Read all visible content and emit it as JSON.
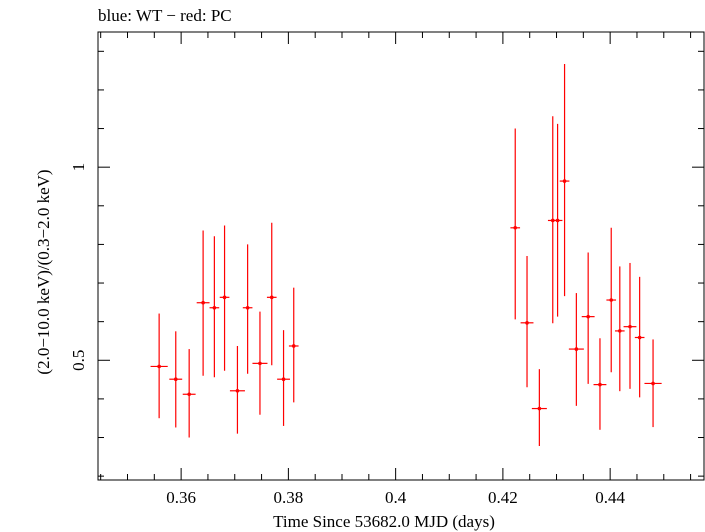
{
  "chart_data": {
    "type": "scatter",
    "title": "blue: WT − red: PC",
    "xlabel": "Time Since 53682.0 MJD (days)",
    "ylabel": "(2.0−10.0 keV)/(0.3−2.0 keV)",
    "xlim": [
      0.3445,
      0.4575
    ],
    "ylim": [
      0.19,
      1.35
    ],
    "x_ticks": [
      {
        "value": 0.36,
        "label": "0.36"
      },
      {
        "value": 0.38,
        "label": "0.38"
      },
      {
        "value": 0.4,
        "label": "0.4"
      },
      {
        "value": 0.42,
        "label": "0.42"
      },
      {
        "value": 0.44,
        "label": "0.44"
      }
    ],
    "y_ticks": [
      {
        "value": 0.5,
        "label": "0.5"
      },
      {
        "value": 1.0,
        "label": "1"
      }
    ],
    "grid": false,
    "series": [
      {
        "name": "PC",
        "color": "#ff0000",
        "points": [
          {
            "x": 0.3559,
            "xerr": 0.0016,
            "y": 0.484,
            "yerr_low": 0.134,
            "yerr_high": 0.137
          },
          {
            "x": 0.359,
            "xerr": 0.0012,
            "y": 0.451,
            "yerr_low": 0.125,
            "yerr_high": 0.124
          },
          {
            "x": 0.3615,
            "xerr": 0.0012,
            "y": 0.412,
            "yerr_low": 0.112,
            "yerr_high": 0.117
          },
          {
            "x": 0.3641,
            "xerr": 0.0012,
            "y": 0.649,
            "yerr_low": 0.189,
            "yerr_high": 0.187
          },
          {
            "x": 0.3662,
            "xerr": 0.0009,
            "y": 0.636,
            "yerr_low": 0.18,
            "yerr_high": 0.185
          },
          {
            "x": 0.3681,
            "xerr": 0.0009,
            "y": 0.663,
            "yerr_low": 0.19,
            "yerr_high": 0.186
          },
          {
            "x": 0.3705,
            "xerr": 0.0014,
            "y": 0.421,
            "yerr_low": 0.111,
            "yerr_high": 0.116
          },
          {
            "x": 0.3724,
            "xerr": 0.0009,
            "y": 0.636,
            "yerr_low": 0.171,
            "yerr_high": 0.164
          },
          {
            "x": 0.3747,
            "xerr": 0.0014,
            "y": 0.492,
            "yerr_low": 0.133,
            "yerr_high": 0.134
          },
          {
            "x": 0.3769,
            "xerr": 0.0009,
            "y": 0.663,
            "yerr_low": 0.176,
            "yerr_high": 0.193
          },
          {
            "x": 0.3791,
            "xerr": 0.0012,
            "y": 0.451,
            "yerr_low": 0.121,
            "yerr_high": 0.127
          },
          {
            "x": 0.381,
            "xerr": 0.0009,
            "y": 0.537,
            "yerr_low": 0.146,
            "yerr_high": 0.151
          },
          {
            "x": 0.4223,
            "xerr": 0.0009,
            "y": 0.843,
            "yerr_low": 0.237,
            "yerr_high": 0.257
          },
          {
            "x": 0.4245,
            "xerr": 0.0012,
            "y": 0.597,
            "yerr_low": 0.167,
            "yerr_high": 0.173
          },
          {
            "x": 0.4268,
            "xerr": 0.0014,
            "y": 0.375,
            "yerr_low": 0.097,
            "yerr_high": 0.102
          },
          {
            "x": 0.4293,
            "xerr": 0.0009,
            "y": 0.862,
            "yerr_low": 0.266,
            "yerr_high": 0.27
          },
          {
            "x": 0.4302,
            "xerr": 0.0009,
            "y": 0.862,
            "yerr_low": 0.249,
            "yerr_high": 0.25
          },
          {
            "x": 0.4315,
            "xerr": 0.0009,
            "y": 0.964,
            "yerr_low": 0.298,
            "yerr_high": 0.303
          },
          {
            "x": 0.4337,
            "xerr": 0.0014,
            "y": 0.529,
            "yerr_low": 0.147,
            "yerr_high": 0.145
          },
          {
            "x": 0.4359,
            "xerr": 0.0012,
            "y": 0.613,
            "yerr_low": 0.174,
            "yerr_high": 0.166
          },
          {
            "x": 0.4381,
            "xerr": 0.0012,
            "y": 0.437,
            "yerr_low": 0.117,
            "yerr_high": 0.12
          },
          {
            "x": 0.4402,
            "xerr": 0.0009,
            "y": 0.656,
            "yerr_low": 0.187,
            "yerr_high": 0.187
          },
          {
            "x": 0.4418,
            "xerr": 0.0009,
            "y": 0.576,
            "yerr_low": 0.156,
            "yerr_high": 0.167
          },
          {
            "x": 0.4437,
            "xerr": 0.0012,
            "y": 0.587,
            "yerr_low": 0.161,
            "yerr_high": 0.165
          },
          {
            "x": 0.4455,
            "xerr": 0.0009,
            "y": 0.559,
            "yerr_low": 0.155,
            "yerr_high": 0.157
          },
          {
            "x": 0.448,
            "xerr": 0.0016,
            "y": 0.44,
            "yerr_low": 0.113,
            "yerr_high": 0.114
          }
        ]
      }
    ]
  }
}
